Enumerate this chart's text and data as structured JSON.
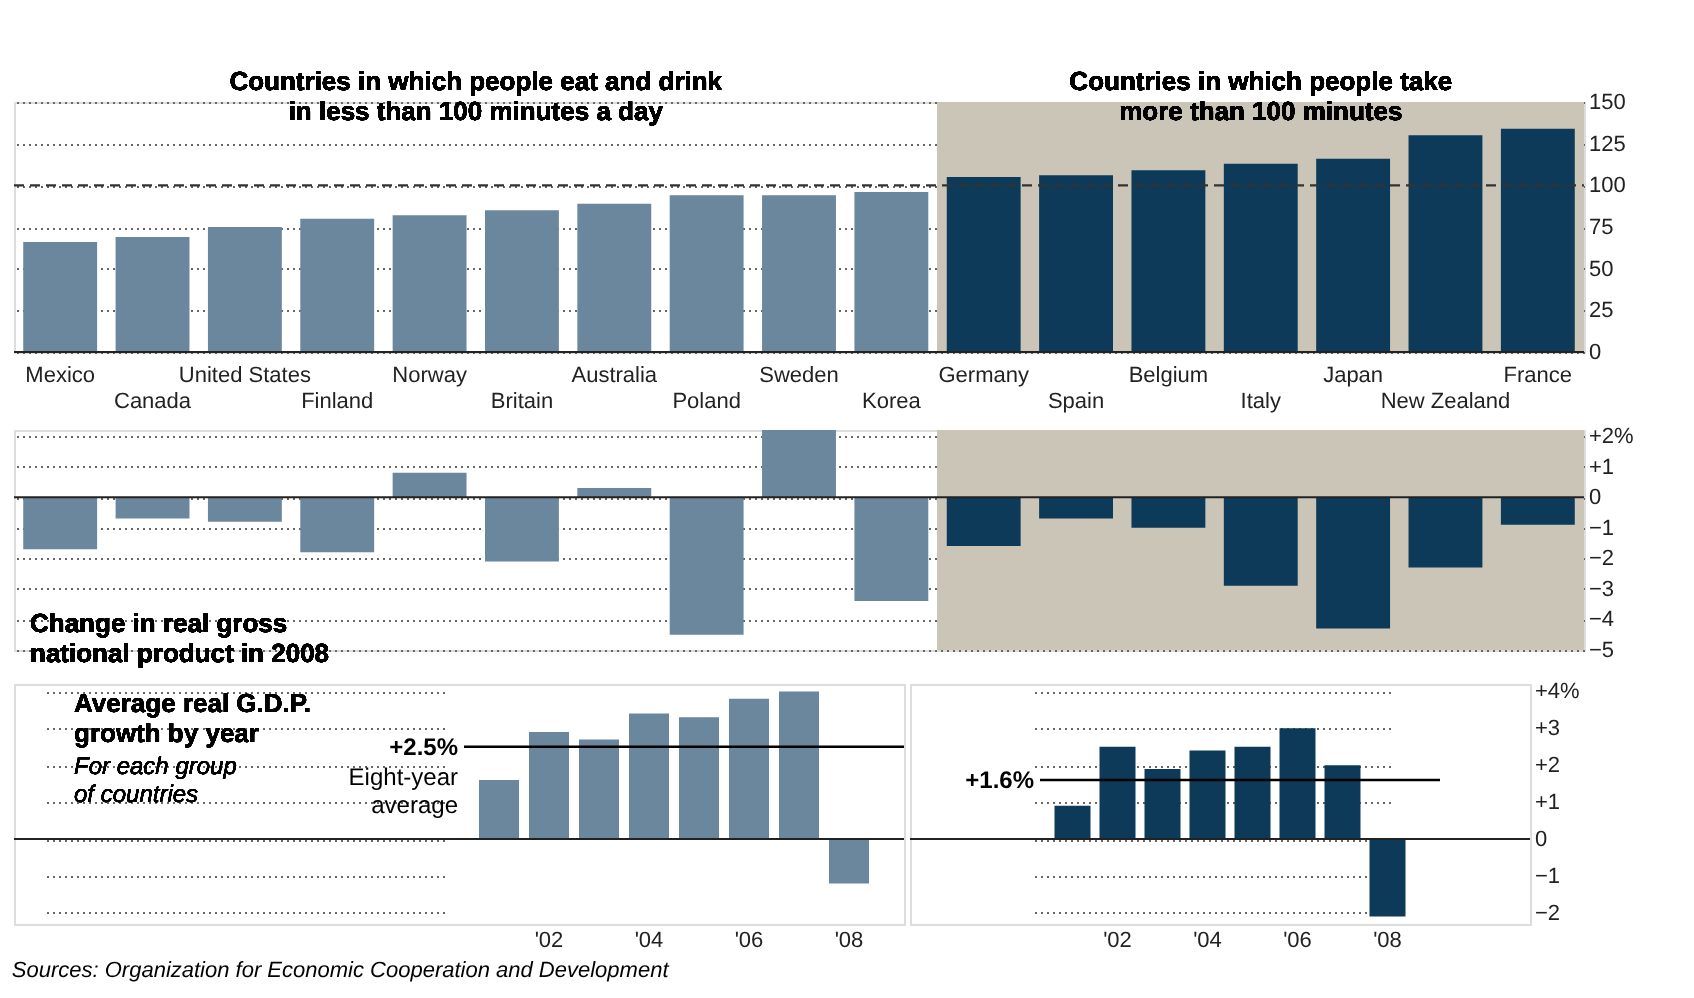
{
  "chart_data": [
    {
      "type": "bar",
      "annotations": [
        "Countries in which people eat and drink in less than 100 minutes a day"
      ],
      "categories": [
        "Mexico",
        "Canada",
        "United States",
        "Finland",
        "Norway",
        "Britain",
        "Australia",
        "Poland",
        "Sweden",
        "Korea",
        "Germany",
        "Spain",
        "Belgium",
        "Italy",
        "Japan",
        "New Zealand",
        "France"
      ],
      "values": [
        66,
        69,
        75,
        80,
        82,
        85,
        89,
        94,
        94,
        96,
        105,
        106,
        109,
        113,
        116,
        130,
        134
      ],
      "colors": [
        "#6a879e",
        "#6a879e",
        "#6a879e",
        "#6a879e",
        "#6a879e",
        "#6a879e",
        "#6a879e",
        "#6a879e",
        "#6a879e",
        "#6a879e",
        "#0d3a58",
        "#0d3a58",
        "#0d3a58",
        "#0d3a58",
        "#0d3a58",
        "#0d3a58",
        "#0d3a58"
      ],
      "ylim": [
        0,
        150
      ],
      "yticks": [
        0,
        25,
        50,
        75,
        100,
        125,
        150
      ],
      "grid": "y",
      "ref_lines": [
        {
          "axis": "y",
          "value": 100,
          "line_style": "dashed",
          "color": "#333333"
        }
      ],
      "bands": [
        {
          "axis": "x",
          "from": "Germany",
          "to": "France",
          "label": "Countries in which people take more than 100 minutes",
          "color": "#cbc5b7"
        }
      ]
    },
    {
      "type": "bar",
      "title": "Change in real gross national product in 2008",
      "categories": [
        "Mexico",
        "Canada",
        "United States",
        "Finland",
        "Norway",
        "Britain",
        "Australia",
        "Poland",
        "Sweden",
        "Korea",
        "Germany",
        "Spain",
        "Belgium",
        "Italy",
        "Japan",
        "New Zealand",
        "France"
      ],
      "values": [
        -1.7,
        -0.7,
        -0.8,
        -1.8,
        0.8,
        -2.1,
        0.3,
        -4.5,
        2.2,
        -3.4,
        -1.6,
        -0.7,
        -1.0,
        -2.9,
        -4.3,
        -2.3,
        -0.9
      ],
      "colors": [
        "#6a879e",
        "#6a879e",
        "#6a879e",
        "#6a879e",
        "#6a879e",
        "#6a879e",
        "#6a879e",
        "#6a879e",
        "#6a879e",
        "#6a879e",
        "#0d3a58",
        "#0d3a58",
        "#0d3a58",
        "#0d3a58",
        "#0d3a58",
        "#0d3a58",
        "#0d3a58"
      ],
      "ylim": [
        -5,
        2.2
      ],
      "yticks": [
        {
          "value": 2,
          "label": "+2%"
        },
        {
          "value": 1,
          "label": "+1"
        },
        0,
        -1,
        -2,
        -3,
        -4,
        -5
      ],
      "grid": "y",
      "tick_labels": "y",
      "bands": [
        {
          "axis": "x",
          "from": "Germany",
          "to": "France",
          "color": "#cbc5b7"
        }
      ]
    },
    {
      "type": "bar",
      "title": "Average real G.D.P. growth by year",
      "annotations": [
        "For each group of countries",
        "Eight-year average"
      ],
      "categories": [
        null,
        "'02",
        null,
        "'04",
        null,
        "'06",
        null,
        "'08"
      ],
      "values": [
        1.6,
        2.9,
        2.7,
        3.4,
        3.3,
        3.8,
        4.0,
        -1.2
      ],
      "color": "#6a879e",
      "ylim": [
        -2.3,
        4.2
      ],
      "yticks": [
        {
          "value": 4,
          "label": "+4%"
        },
        {
          "value": 3,
          "label": "+3"
        },
        {
          "value": 2,
          "label": "+2"
        },
        {
          "value": 1,
          "label": "+1"
        },
        0,
        -1,
        -2
      ],
      "grid": "y",
      "tick_labels": "x",
      "ref_lines": [
        {
          "axis": "y",
          "value": 2.5,
          "label": "+2.5%",
          "color": "#000000"
        }
      ]
    },
    {
      "type": "bar",
      "annotations": [
        "Sources: Organization for Economic Cooperation and Development"
      ],
      "categories": [
        null,
        "'02",
        null,
        "'04",
        null,
        "'06",
        null,
        "'08"
      ],
      "values": [
        0.9,
        2.5,
        1.9,
        2.4,
        2.5,
        3.0,
        2.0,
        -2.1
      ],
      "color": "#0d3a58",
      "ylim": [
        -2.3,
        4.2
      ],
      "yticks": [
        {
          "value": 4,
          "label": "+4%"
        },
        {
          "value": 3,
          "label": "+3"
        },
        {
          "value": 2,
          "label": "+2"
        },
        {
          "value": 1,
          "label": "+1"
        },
        0,
        -1,
        -2
      ],
      "grid": "y",
      "ref_lines": [
        {
          "axis": "y",
          "value": 1.6,
          "label": "+1.6%",
          "color": "#000000"
        }
      ]
    }
  ]
}
